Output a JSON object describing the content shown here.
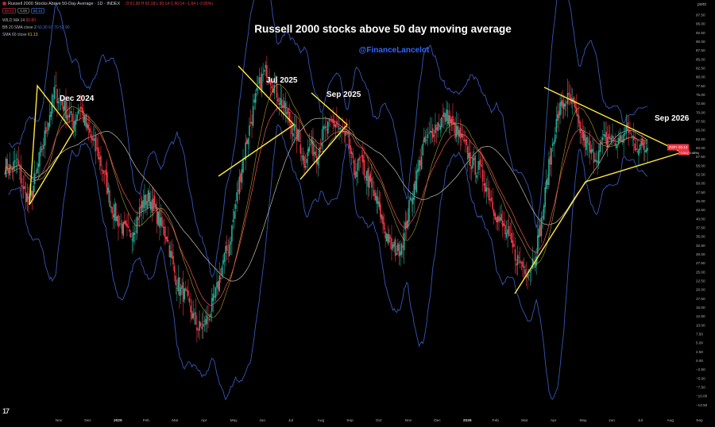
{
  "header": {
    "title": "Russell 2000 Stocks Above 50-Day Average · 1D · INDEX",
    "ohlc_text": "O 61.90 H 62.18 L 60.14 C 60.14 −1.64 (−2.65%)",
    "price_box_1": "60.14",
    "price_box_2": "60.14",
    "change_box": "0.00",
    "indicators": [
      {
        "name": "WILD MA 14",
        "value": "60.80"
      },
      {
        "name": "BB 20 SMA close 2",
        "value": "60.30 67.70 52.90"
      },
      {
        "name": "SMA 60 close",
        "value": "61.13"
      }
    ],
    "unit": "point"
  },
  "annotations": {
    "main_title": "Russell 2000 stocks above 50 day moving average",
    "handle": "@FinanceLancelot",
    "labels": [
      "Dec 2024",
      "Jul 2025",
      "Sep 2025",
      "Sep 2026"
    ]
  },
  "price_tags": {
    "last_label": "R2FI",
    "last": "60.14",
    "change": "−1.64 (−2.65%)"
  },
  "colors": {
    "background": "#000000",
    "up": "#22ab94",
    "down": "#f23645",
    "bollinger": "#3656b5",
    "wild_ma": "#f7525f",
    "sma20": "#d9c52a",
    "sma60": "#d8d4c4",
    "trendline": "#ffe93b",
    "handle": "#2f67ff"
  },
  "chart_data": {
    "type": "line",
    "title": "Russell 2000 stocks above 50 day moving average",
    "ylabel": "point",
    "ylim": [
      -12.5,
      100
    ],
    "yticks": [
      "97.50",
      "95.00",
      "92.50",
      "90.00",
      "87.50",
      "85.00",
      "82.50",
      "80.00",
      "77.50",
      "75.00",
      "72.50",
      "70.00",
      "67.50",
      "65.00",
      "62.50",
      "60.00",
      "57.50",
      "55.00",
      "52.50",
      "50.00",
      "47.50",
      "45.00",
      "42.50",
      "40.00",
      "37.50",
      "35.00",
      "32.50",
      "30.00",
      "27.50",
      "25.00",
      "22.50",
      "20.00",
      "17.50",
      "15.00",
      "12.50",
      "10.00",
      "7.50",
      "5.00",
      "2.50",
      "0.00",
      "−2.50",
      "−5.00",
      "−7.50",
      "−10.00",
      "−12.50"
    ],
    "xticks": [
      "Nov",
      "Dec",
      "2025",
      "Feb",
      "Mar",
      "Apr",
      "May",
      "Jun",
      "Jul",
      "Aug",
      "Sep",
      "Oct",
      "Nov",
      "Dec",
      "2026",
      "Feb",
      "Mar",
      "Apr",
      "May",
      "Jun",
      "Jul",
      "Aug",
      "Sep"
    ],
    "x_months": [
      "2024-10",
      "2024-11",
      "2024-12",
      "2025-01",
      "2025-02",
      "2025-03",
      "2025-04",
      "2025-05",
      "2025-06",
      "2025-07",
      "2025-08",
      "2025-09",
      "2025-10",
      "2025-11",
      "2025-12",
      "2026-01",
      "2026-02",
      "2026-03",
      "2026-04",
      "2026-05",
      "2026-06",
      "2026-07",
      "2026-08",
      "2026-09",
      "2026-10"
    ],
    "close_path": [
      55,
      54,
      56,
      48,
      45,
      52,
      60,
      68,
      76,
      73,
      70,
      67,
      72,
      66,
      62,
      58,
      52,
      44,
      40,
      37,
      35,
      39,
      44,
      46,
      43,
      38,
      35,
      26,
      20,
      18,
      13,
      9,
      10,
      14,
      20,
      28,
      33,
      44,
      55,
      64,
      72,
      79,
      82,
      78,
      74,
      70,
      66,
      63,
      56,
      61,
      58,
      64,
      66,
      67,
      64,
      62,
      53,
      56,
      52,
      47,
      43,
      36,
      32,
      31,
      35,
      45,
      52,
      60,
      63,
      66,
      68,
      69,
      65,
      63,
      59,
      55,
      54,
      50,
      45,
      40,
      37,
      33,
      29,
      27,
      25,
      30,
      39,
      52,
      64,
      71,
      74,
      72,
      66,
      62,
      58,
      58,
      62,
      63,
      61,
      63,
      65,
      61,
      60,
      60
    ],
    "series": [
      {
        "name": "Russell 2000 Stocks Above 50-Day Average",
        "last": 60.14
      },
      {
        "name": "WILD MA 14",
        "last": 60.8
      },
      {
        "name": "BB 20 SMA close 2",
        "upper": 67.7,
        "basis": 60.3,
        "lower": 52.9
      },
      {
        "name": "SMA 60 close",
        "last": 61.13
      }
    ],
    "grid": false
  }
}
